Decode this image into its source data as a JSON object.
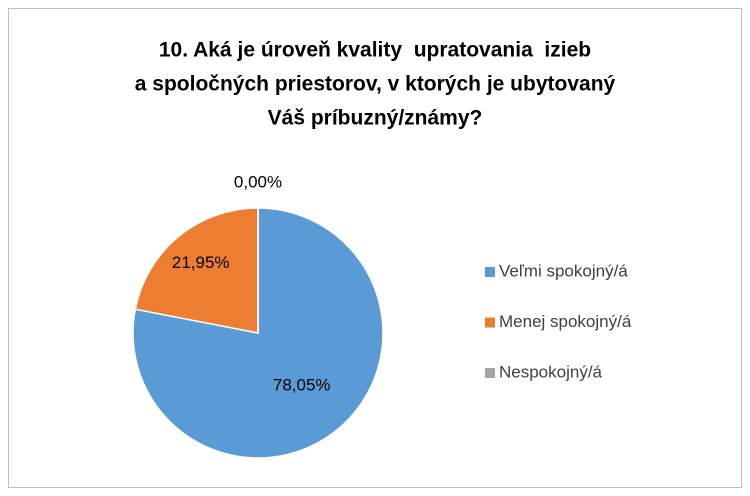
{
  "chart_data": {
    "type": "pie",
    "title": [
      "10. Aká je úroveň kvality  upratovania  izieb",
      "a spoločných priestorov, v ktorých je ubytovaný",
      "Váš príbuzný/známy?"
    ],
    "categories": [
      "Veľmi spokojný/á",
      "Menej spokojný/á",
      "Nespokojný/á"
    ],
    "values": [
      78.05,
      21.95,
      0
    ],
    "value_labels": [
      "78,05%",
      "21,95%",
      "0,00%"
    ],
    "colors": [
      "#5b9bd5",
      "#ed7d31",
      "#a5a5a5"
    ],
    "legend": "right"
  }
}
